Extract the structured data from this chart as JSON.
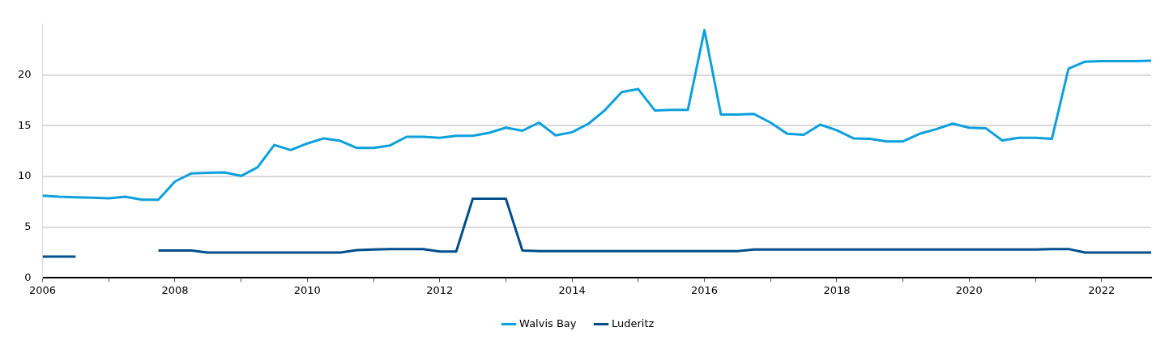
{
  "chart_data": {
    "type": "line",
    "x": [
      2006,
      2006.25,
      2006.5,
      2006.75,
      2007,
      2007.25,
      2007.5,
      2007.75,
      2008,
      2008.25,
      2008.5,
      2008.75,
      2009,
      2009.25,
      2009.5,
      2009.75,
      2010,
      2010.25,
      2010.5,
      2010.75,
      2011,
      2011.25,
      2011.5,
      2011.75,
      2012,
      2012.25,
      2012.5,
      2012.75,
      2013,
      2013.25,
      2013.5,
      2013.75,
      2014,
      2014.25,
      2014.5,
      2014.75,
      2015,
      2015.25,
      2015.5,
      2015.75,
      2016,
      2016.25,
      2016.5,
      2016.75,
      2017,
      2017.25,
      2017.5,
      2017.75,
      2018,
      2018.25,
      2018.5,
      2018.75,
      2019,
      2019.25,
      2019.5,
      2019.75,
      2020,
      2020.25,
      2020.5,
      2020.75,
      2021,
      2021.25,
      2021.5,
      2021.75,
      2022,
      2022.25,
      2022.5,
      2022.75
    ],
    "series": [
      {
        "name": "Walvis Bay",
        "color": "#0ca0dc",
        "values": [
          8.1,
          8.0,
          7.95,
          7.9,
          7.85,
          8.0,
          7.7,
          7.7,
          9.5,
          10.3,
          10.35,
          10.4,
          10.05,
          10.9,
          13.1,
          12.6,
          13.25,
          13.75,
          13.5,
          12.8,
          12.8,
          13.05,
          13.9,
          13.9,
          13.8,
          14.0,
          14.0,
          14.3,
          14.8,
          14.5,
          15.3,
          14.05,
          14.35,
          15.2,
          16.55,
          18.3,
          18.6,
          16.5,
          16.55,
          16.55,
          24.4,
          16.1,
          16.1,
          16.15,
          15.3,
          14.2,
          14.1,
          15.1,
          14.55,
          13.75,
          13.7,
          13.45,
          13.45,
          14.2,
          14.65,
          15.2,
          14.8,
          14.75,
          13.55,
          13.8,
          13.8,
          13.7,
          20.6,
          21.3,
          21.35,
          21.35,
          21.35,
          21.4
        ]
      },
      {
        "name": "Luderitz",
        "color": "#004f8c",
        "values": [
          2.1,
          2.1,
          2.1,
          null,
          null,
          null,
          null,
          2.7,
          2.7,
          2.7,
          2.5,
          2.5,
          2.5,
          2.5,
          2.5,
          2.5,
          2.5,
          2.5,
          2.5,
          2.75,
          2.8,
          2.85,
          2.85,
          2.85,
          2.6,
          2.6,
          7.8,
          7.8,
          7.8,
          2.7,
          2.65,
          2.65,
          2.65,
          2.65,
          2.65,
          2.65,
          2.65,
          2.65,
          2.65,
          2.65,
          2.65,
          2.65,
          2.65,
          2.8,
          2.8,
          2.8,
          2.8,
          2.8,
          2.8,
          2.8,
          2.8,
          2.8,
          2.8,
          2.8,
          2.8,
          2.8,
          2.8,
          2.8,
          2.8,
          2.8,
          2.8,
          2.85,
          2.85,
          2.5,
          2.5,
          2.5,
          2.5,
          2.5
        ]
      }
    ],
    "xlim": [
      2006,
      2022.75
    ],
    "xticks": [
      2006,
      {
        "value": 2007,
        "label": null
      },
      2008,
      {
        "value": 2009,
        "label": null
      },
      2010,
      {
        "value": 2011,
        "label": null
      },
      2012,
      {
        "value": 2013,
        "label": null
      },
      2014,
      {
        "value": 2015,
        "label": null
      },
      2016,
      {
        "value": 2017,
        "label": null
      },
      2018,
      {
        "value": 2019,
        "label": null
      },
      2020,
      {
        "value": 2021,
        "label": null
      },
      2022
    ],
    "ylim": [
      0,
      25
    ],
    "yticks": [
      0,
      5,
      10,
      15,
      20
    ],
    "grid": "y",
    "legend": "bottom",
    "marker": "none",
    "line_style": "solid"
  }
}
